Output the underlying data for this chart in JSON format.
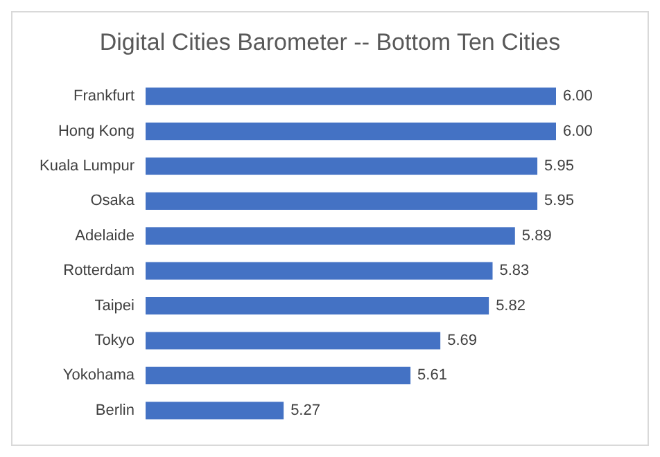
{
  "chart_data": {
    "type": "bar",
    "orientation": "horizontal",
    "title": "Digital Cities Barometer -- Bottom Ten Cities",
    "categories": [
      "Frankfurt",
      "Hong Kong",
      "Kuala Lumpur",
      "Osaka",
      "Adelaide",
      "Rotterdam",
      "Taipei",
      "Tokyo",
      "Yokohama",
      "Berlin"
    ],
    "values": [
      6.0,
      6.0,
      5.95,
      5.95,
      5.89,
      5.83,
      5.82,
      5.69,
      5.61,
      5.27
    ],
    "value_labels": [
      "6.00",
      "6.00",
      "5.95",
      "5.95",
      "5.89",
      "5.83",
      "5.82",
      "5.69",
      "5.61",
      "5.27"
    ],
    "color": "#4472c4",
    "xlim": [
      4.9,
      6.0
    ],
    "tick_labels": "y"
  }
}
